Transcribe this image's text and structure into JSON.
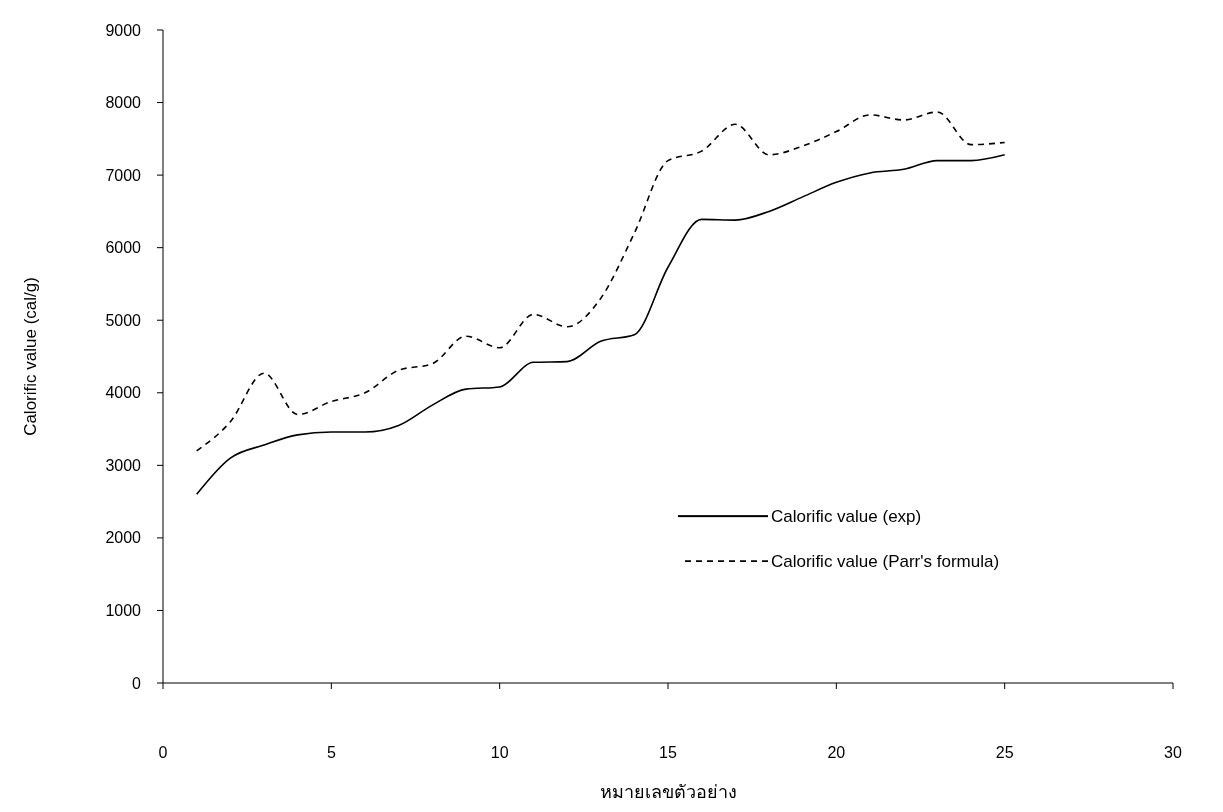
{
  "chart_data": {
    "type": "line",
    "xlabel": "หมายเลขตัวอย่าง",
    "ylabel": "Calorific value (cal/g)",
    "x": [
      1,
      2,
      3,
      4,
      5,
      6,
      7,
      8,
      9,
      10,
      11,
      12,
      13,
      14,
      15,
      16,
      17,
      18,
      19,
      20,
      21,
      22,
      23,
      24,
      25
    ],
    "series": [
      {
        "name": "Calorific value (exp)",
        "color": "#000000",
        "line_style": "solid",
        "values": [
          2600,
          3100,
          3280,
          3420,
          3460,
          3460,
          3550,
          3830,
          4050,
          4080,
          4420,
          4430,
          4710,
          4800,
          5730,
          6390,
          6380,
          6500,
          6700,
          6900,
          7030,
          7080,
          7200,
          7200,
          7280
        ]
      },
      {
        "name": "Calorific value (Parr's formula)",
        "color": "#000000",
        "line_style": "dashed",
        "values": [
          3200,
          3600,
          4270,
          3700,
          3880,
          4000,
          4310,
          4400,
          4780,
          4620,
          5080,
          4910,
          5300,
          6200,
          7200,
          7330,
          7700,
          7280,
          7400,
          7600,
          7830,
          7760,
          7870,
          7420,
          7450
        ]
      }
    ],
    "xlim": [
      0,
      30
    ],
    "xticks": [
      0,
      5,
      10,
      15,
      20,
      25,
      30
    ],
    "ylim": [
      0,
      9000
    ],
    "yticks": [
      0,
      1000,
      2000,
      3000,
      4000,
      5000,
      6000,
      7000,
      8000,
      9000
    ],
    "grid": false,
    "legend": "right"
  }
}
